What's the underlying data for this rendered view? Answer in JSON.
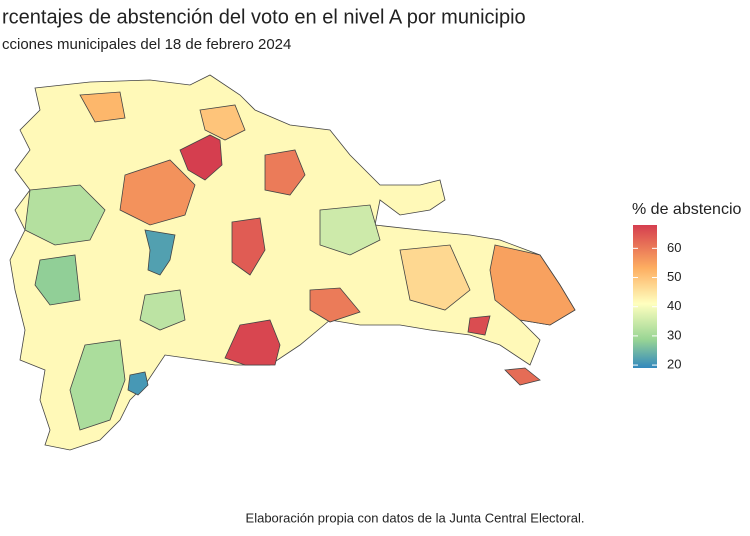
{
  "title": "rcentajes de abstención del voto en el nivel A por municipio",
  "subtitle": "cciones municipales del 18 de febrero 2024",
  "caption": "Elaboración propia con datos de la Junta Central Electoral.",
  "legend": {
    "title": "% de abstencio",
    "range": [
      19,
      68
    ],
    "ticks": [
      20,
      30,
      40,
      50,
      60
    ]
  },
  "municipality_values": [
    42,
    68,
    57,
    22,
    67,
    55,
    62,
    21,
    32,
    60,
    64,
    60,
    66,
    50,
    31,
    35,
    33,
    47,
    52,
    28
  ]
}
